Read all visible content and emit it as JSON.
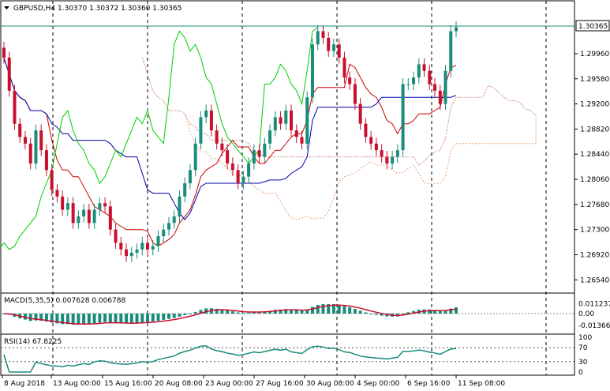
{
  "header": {
    "symbol_line": "GBPUSD,H4  1.30370 1.30372 1.30360 1.30365"
  },
  "current_price_label": "1.30365",
  "macd": {
    "label": "MACD(5,35,5) 0.007628 0.006788",
    "axis_ticks": [
      "0.011237",
      "0.00",
      "-0.013666"
    ]
  },
  "rsi": {
    "label": "RSI(14) 67.8225",
    "axis_ticks": [
      "100",
      "70",
      "30",
      "0"
    ]
  },
  "price_axis_ticks": [
    "1.29960",
    "1.29580",
    "1.29200",
    "1.28820",
    "1.28440",
    "1.28060",
    "1.27680",
    "1.27300",
    "1.26920",
    "1.26540"
  ],
  "time_axis_ticks": [
    "8 Aug 2018",
    "13 Aug 00:00",
    "15 Aug 16:00",
    "20 Aug 08:00",
    "23 Aug 00:00",
    "27 Aug 16:00",
    "30 Aug 08:00",
    "4 Sep 00:00",
    "6 Sep 16:00",
    "11 Sep 08:00"
  ],
  "colors": {
    "bull_candle": "#1a8c7a",
    "bear_candle": "#c8102e",
    "tenkan": "#cc0000",
    "kijun": "#0000aa",
    "chikou": "#00cc00",
    "cloud_pink": "#c9a0c9",
    "cloud_orange": "#e8a070",
    "macd_hist": "#1a8c7a",
    "macd_signal": "#c8102e",
    "rsi_line": "#1a8c7a"
  },
  "chart_data": {
    "type": "candlestick",
    "symbol": "GBPUSD",
    "timeframe": "H4",
    "ohlc_last": {
      "open": 1.3037,
      "high": 1.30372,
      "low": 1.3036,
      "close": 1.30365
    },
    "ylim": [
      1.264,
      1.307
    ],
    "close": [
      1.299,
      1.294,
      1.289,
      1.287,
      1.286,
      1.283,
      1.288,
      1.285,
      1.282,
      1.279,
      1.278,
      1.276,
      1.277,
      1.274,
      1.275,
      1.276,
      1.274,
      1.276,
      1.277,
      1.2765,
      1.273,
      1.271,
      1.27,
      1.269,
      1.2695,
      1.27,
      1.271,
      1.27,
      1.2705,
      1.272,
      1.273,
      1.274,
      1.275,
      1.278,
      1.28,
      1.282,
      1.286,
      1.29,
      1.291,
      1.288,
      1.286,
      1.285,
      1.283,
      1.282,
      1.28,
      1.281,
      1.283,
      1.285,
      1.284,
      1.286,
      1.288,
      1.29,
      1.289,
      1.291,
      1.288,
      1.287,
      1.286,
      1.293,
      1.301,
      1.303,
      1.302,
      1.3,
      1.301,
      1.299,
      1.296,
      1.295,
      1.292,
      1.289,
      1.287,
      1.286,
      1.285,
      1.284,
      1.283,
      1.284,
      1.285,
      1.295,
      1.295,
      1.296,
      1.298,
      1.297,
      1.295,
      1.294,
      1.292,
      1.297,
      1.303,
      1.3036
    ],
    "rsi_last": 67.8225,
    "macd_last": 0.007628,
    "macd_signal_last": 0.006788
  }
}
